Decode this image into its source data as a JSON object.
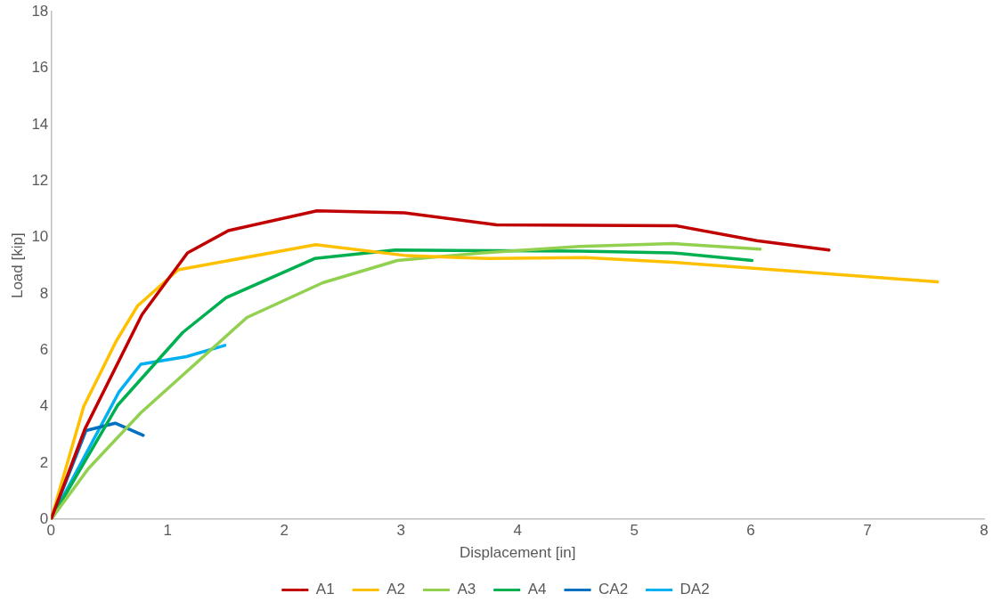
{
  "chart_data": {
    "type": "line",
    "xlabel": "Displacement [in]",
    "ylabel": "Load [kip]",
    "xlim": [
      0,
      8
    ],
    "xticks": [
      0,
      1,
      2,
      3,
      4,
      5,
      6,
      7,
      8
    ],
    "ylim": [
      0,
      18
    ],
    "yticks": [
      0,
      2,
      4,
      6,
      8,
      10,
      12,
      14,
      16,
      18
    ],
    "grid": false,
    "legend": "bottom",
    "marker": "none",
    "series": [
      {
        "name": "A1",
        "color": "#c00000",
        "x": [
          0,
          0.29,
          0.78,
          1.17,
          1.52,
          2.28,
          3.03,
          3.82,
          5.36,
          6.05,
          6.67
        ],
        "values": [
          0,
          3.2,
          7.26,
          9.45,
          10.24,
          10.94,
          10.87,
          10.44,
          10.41,
          9.88,
          9.55
        ]
      },
      {
        "name": "A2",
        "color": "#ffc000",
        "x": [
          0,
          0.28,
          0.56,
          0.74,
          1.09,
          2.27,
          3.05,
          3.75,
          4.58,
          5.33,
          7.6
        ],
        "values": [
          0,
          4.0,
          6.33,
          7.56,
          8.85,
          9.74,
          9.35,
          9.25,
          9.28,
          9.12,
          8.42
        ]
      },
      {
        "name": "A3",
        "color": "#92d050",
        "x": [
          0,
          0.32,
          0.77,
          1.68,
          2.33,
          2.97,
          3.7,
          4.53,
          5.33,
          6.08
        ],
        "values": [
          0,
          1.8,
          3.78,
          7.16,
          8.39,
          9.18,
          9.45,
          9.68,
          9.78,
          9.58
        ]
      },
      {
        "name": "A4",
        "color": "#00b050",
        "x": [
          0,
          0.57,
          1.13,
          1.5,
          2.26,
          2.95,
          4.53,
          5.33,
          6.01
        ],
        "values": [
          0,
          4.04,
          6.63,
          7.86,
          9.25,
          9.55,
          9.51,
          9.45,
          9.18
        ]
      },
      {
        "name": "CA2",
        "color": "#0070c0",
        "x": [
          0,
          0.3,
          0.55,
          0.79
        ],
        "values": [
          0,
          3.15,
          3.41,
          2.98
        ]
      },
      {
        "name": "DA2",
        "color": "#00b0f0",
        "x": [
          0,
          0.58,
          0.77,
          1.16,
          1.49
        ],
        "values": [
          0,
          4.5,
          5.5,
          5.77,
          6.17
        ]
      }
    ]
  }
}
